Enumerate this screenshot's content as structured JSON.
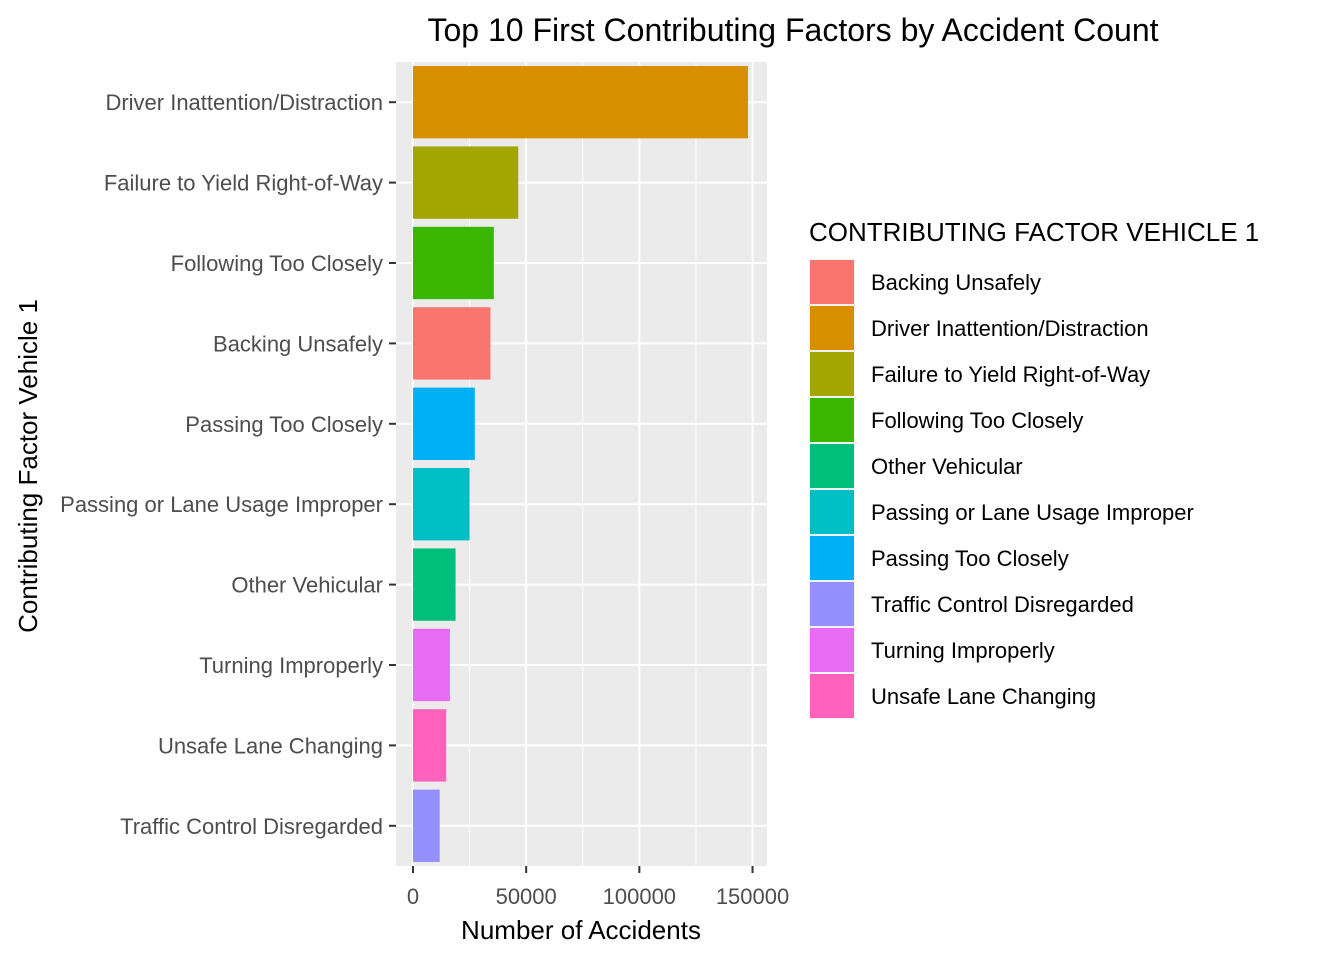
{
  "chart_data": {
    "type": "bar",
    "orientation": "horizontal",
    "title": "Top 10 First Contributing Factors by Accident Count",
    "xlabel": "Number of Accidents",
    "ylabel": "Contributing Factor Vehicle 1",
    "xlim": [
      0,
      155000
    ],
    "x_ticks": [
      0,
      50000,
      100000,
      150000
    ],
    "x_tick_labels": [
      "0",
      "50000",
      "100000",
      "150000"
    ],
    "grid": true,
    "categories": [
      "Driver Inattention/Distraction",
      "Failure to Yield Right-of-Way",
      "Following Too Closely",
      "Backing Unsafely",
      "Passing Too Closely",
      "Passing or Lane Usage Improper",
      "Other Vehicular",
      "Turning Improperly",
      "Unsafe Lane Changing",
      "Traffic Control Disregarded"
    ],
    "values": [
      148000,
      46500,
      35700,
      34200,
      27300,
      25000,
      18800,
      16300,
      14700,
      11800
    ],
    "colors": [
      "#D89000",
      "#A3A500",
      "#39B600",
      "#F8766D",
      "#00B0F6",
      "#00BFC4",
      "#00BF7D",
      "#E76BF3",
      "#FF62BC",
      "#9590FF"
    ],
    "legend": {
      "title": "CONTRIBUTING FACTOR VEHICLE 1",
      "placement": "right",
      "entries": [
        {
          "label": "Backing Unsafely",
          "color": "#F8766D"
        },
        {
          "label": "Driver Inattention/Distraction",
          "color": "#D89000"
        },
        {
          "label": "Failure to Yield Right-of-Way",
          "color": "#A3A500"
        },
        {
          "label": "Following Too Closely",
          "color": "#39B600"
        },
        {
          "label": "Other Vehicular",
          "color": "#00BF7D"
        },
        {
          "label": "Passing or Lane Usage Improper",
          "color": "#00BFC4"
        },
        {
          "label": "Passing Too Closely",
          "color": "#00B0F6"
        },
        {
          "label": "Traffic Control Disregarded",
          "color": "#9590FF"
        },
        {
          "label": "Turning Improperly",
          "color": "#E76BF3"
        },
        {
          "label": "Unsafe Lane Changing",
          "color": "#FF62BC"
        }
      ]
    },
    "panel_color": "#EBEBEB",
    "grid_color": "#FFFFFF"
  }
}
